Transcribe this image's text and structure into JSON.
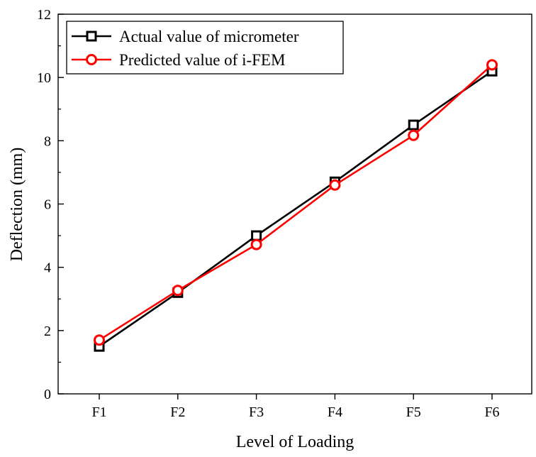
{
  "chart_data": {
    "type": "line",
    "title": "",
    "xlabel": "Level of Loading",
    "ylabel": "Deflection (mm)",
    "categories": [
      "F1",
      "F2",
      "F3",
      "F4",
      "F5",
      "F6"
    ],
    "ylim": [
      0,
      12
    ],
    "yticks": [
      0,
      2,
      4,
      6,
      8,
      10,
      12
    ],
    "grid": false,
    "legend_position": "top-left",
    "series": [
      {
        "name": "Actual value of micrometer",
        "values": [
          1.5,
          3.2,
          5.0,
          6.7,
          8.5,
          10.2
        ],
        "color": "#000000",
        "marker": "square"
      },
      {
        "name": "Predicted value of i-FEM",
        "values": [
          1.7,
          3.27,
          4.72,
          6.6,
          8.17,
          10.4
        ],
        "color": "#ff0000",
        "marker": "circle"
      }
    ]
  }
}
